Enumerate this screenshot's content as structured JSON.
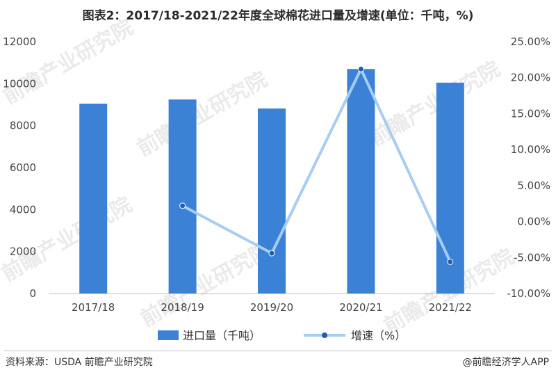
{
  "page": {
    "title": "图表2：2017/18-2021/22年度全球棉花进口量及增速(单位：千吨，%)",
    "source": "资料来源：USDA 前瞻产业研究院",
    "credit": "@前瞻经济学人APP",
    "watermark": "前瞻产业研究院"
  },
  "chart_data": {
    "type": "bar",
    "categories": [
      "2017/18",
      "2018/19",
      "2019/20",
      "2020/21",
      "2021/22"
    ],
    "series": [
      {
        "name": "进口量（千吨）",
        "type": "bar",
        "axis": "left",
        "values": [
          9050,
          9250,
          8820,
          10700,
          10050
        ],
        "color": "#3b82d6"
      },
      {
        "name": "增速（%）",
        "type": "line",
        "axis": "right",
        "values": [
          null,
          2.2,
          -4.4,
          21.2,
          -5.6
        ],
        "color": "#a7cdf2",
        "marker_color": "#1f5fae"
      }
    ],
    "y_left": {
      "lim": [
        0,
        12000
      ],
      "ticks": [
        "0",
        "2000",
        "4000",
        "6000",
        "8000",
        "10000",
        "12000"
      ]
    },
    "y_right": {
      "lim": [
        -10,
        25
      ],
      "ticks": [
        "-10.00%",
        "-5.00%",
        "0.00%",
        "5.00%",
        "10.00%",
        "15.00%",
        "20.00%",
        "25.00%"
      ]
    },
    "grid": false,
    "legend_position": "bottom"
  }
}
